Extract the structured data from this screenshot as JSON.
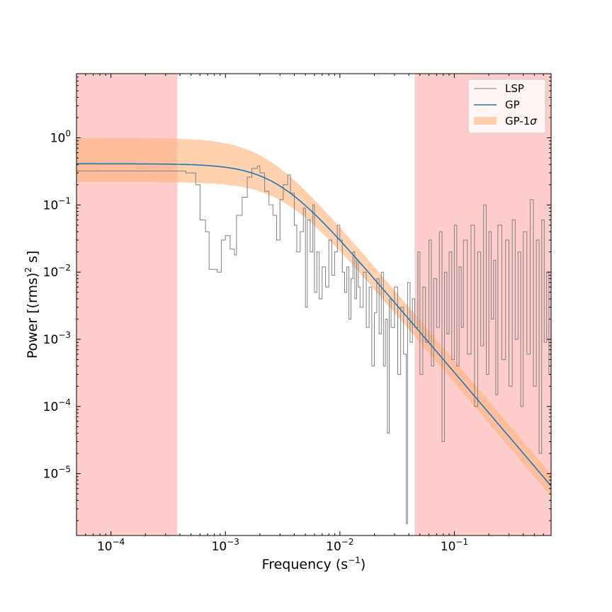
{
  "chart_data": {
    "type": "line",
    "title": "",
    "xlabel": "Frequency (s",
    "xlabel_sup": "−1",
    "xlabel_tail": ")",
    "ylabel": "Power [(rms)",
    "ylabel_sup": "2",
    "ylabel_tail": " s]",
    "xscale": "log",
    "yscale": "log",
    "xlim": [
      5e-05,
      0.7
    ],
    "ylim": [
      1.2e-06,
      9.0
    ],
    "grid": false,
    "legend_position": "top-right",
    "x_ticks": [
      {
        "value": 0.0001,
        "base": "10",
        "exp": "−4"
      },
      {
        "value": 0.001,
        "base": "10",
        "exp": "−3"
      },
      {
        "value": 0.01,
        "base": "10",
        "exp": "−2"
      },
      {
        "value": 0.1,
        "base": "10",
        "exp": "−1"
      }
    ],
    "y_ticks": [
      {
        "value": 1,
        "base": "10",
        "exp": "0"
      },
      {
        "value": 0.1,
        "base": "10",
        "exp": "−1"
      },
      {
        "value": 0.01,
        "base": "10",
        "exp": "−2"
      },
      {
        "value": 0.001,
        "base": "10",
        "exp": "−3"
      },
      {
        "value": 0.0001,
        "base": "10",
        "exp": "−4"
      },
      {
        "value": 1e-05,
        "base": "10",
        "exp": "−5"
      }
    ],
    "shaded_regions": [
      {
        "x_start": 5e-05,
        "x_end": 0.00038,
        "color": "#ff9999"
      },
      {
        "x_start": 0.045,
        "x_end": 0.7,
        "color": "#ff9999"
      }
    ],
    "gp_model": {
      "name": "GP",
      "color": "#1f77b4",
      "form": "lorentzian",
      "amplitude": 0.41,
      "break_frequency": 0.0028,
      "sigma_band": {
        "name": "GP-1σ",
        "color": "#ffb27a",
        "amplitude_low": 0.22,
        "amplitude_high": 1.0,
        "break_low": 0.0032,
        "break_high": 0.0022
      }
    },
    "series": [
      {
        "name": "LSP",
        "color": "#808080",
        "style": "steps",
        "points": [
          [
            5e-05,
            0.32
          ],
          [
            0.0003,
            0.32
          ],
          [
            0.00045,
            0.3
          ],
          [
            0.00055,
            0.2
          ],
          [
            0.0006,
            0.06
          ],
          [
            0.00067,
            0.04
          ],
          [
            0.00072,
            0.011
          ],
          [
            0.00085,
            0.01
          ],
          [
            0.00092,
            0.03
          ],
          [
            0.001,
            0.035
          ],
          [
            0.0011,
            0.022
          ],
          [
            0.0012,
            0.018
          ],
          [
            0.00125,
            0.07
          ],
          [
            0.0014,
            0.13
          ],
          [
            0.00155,
            0.26
          ],
          [
            0.0017,
            0.35
          ],
          [
            0.0019,
            0.38
          ],
          [
            0.002,
            0.3
          ],
          [
            0.0022,
            0.16
          ],
          [
            0.0024,
            0.1
          ],
          [
            0.0026,
            0.07
          ],
          [
            0.0028,
            0.03
          ],
          [
            0.003,
            0.12
          ],
          [
            0.0032,
            0.2
          ],
          [
            0.0035,
            0.28
          ],
          [
            0.0037,
            0.15
          ],
          [
            0.004,
            0.05
          ],
          [
            0.0042,
            0.02
          ],
          [
            0.0045,
            0.04
          ],
          [
            0.0048,
            0.09
          ],
          [
            0.005,
            0.003
          ],
          [
            0.0052,
            0.06
          ],
          [
            0.0055,
            0.02
          ],
          [
            0.0058,
            0.1
          ],
          [
            0.006,
            0.005
          ],
          [
            0.0063,
            0.02
          ],
          [
            0.0066,
            0.004
          ],
          [
            0.007,
            0.012
          ],
          [
            0.0075,
            0.006
          ],
          [
            0.008,
            0.03
          ],
          [
            0.0085,
            0.009
          ],
          [
            0.009,
            0.02
          ],
          [
            0.0095,
            0.05
          ],
          [
            0.01,
            0.03
          ],
          [
            0.0105,
            0.01
          ],
          [
            0.011,
            0.005
          ],
          [
            0.0115,
            0.012
          ],
          [
            0.012,
            0.002
          ],
          [
            0.0125,
            0.008
          ],
          [
            0.013,
            0.02
          ],
          [
            0.0135,
            0.004
          ],
          [
            0.014,
            0.015
          ],
          [
            0.0145,
            0.006
          ],
          [
            0.015,
            0.003
          ],
          [
            0.016,
            0.01
          ],
          [
            0.017,
            0.0015
          ],
          [
            0.018,
            0.006
          ],
          [
            0.019,
            0.0004
          ],
          [
            0.02,
            0.0025
          ],
          [
            0.021,
            0.008
          ],
          [
            0.022,
            0.0012
          ],
          [
            0.023,
            0.01
          ],
          [
            0.024,
            0.0004
          ],
          [
            0.025,
            0.002
          ],
          [
            0.026,
            4e-05
          ],
          [
            0.027,
            0.004
          ],
          [
            0.028,
            0.0015
          ],
          [
            0.03,
            0.006
          ],
          [
            0.032,
            0.0003
          ],
          [
            0.034,
            0.003
          ],
          [
            0.036,
            0.0006
          ],
          [
            0.038,
            1.8e-06
          ],
          [
            0.039,
            0.007
          ],
          [
            0.041,
            0.0009
          ],
          [
            0.043,
            0.004
          ],
          [
            0.045,
            0.0015
          ],
          [
            0.048,
            0.02
          ],
          [
            0.05,
            0.0003
          ],
          [
            0.053,
            0.006
          ],
          [
            0.056,
            0.0009
          ],
          [
            0.06,
            0.03
          ],
          [
            0.063,
            0.0004
          ],
          [
            0.066,
            0.008
          ],
          [
            0.07,
            0.0015
          ],
          [
            0.074,
            0.04
          ],
          [
            0.078,
            3e-05
          ],
          [
            0.082,
            0.01
          ],
          [
            0.086,
            0.0012
          ],
          [
            0.09,
            0.02
          ],
          [
            0.095,
            0.0005
          ],
          [
            0.1,
            0.05
          ],
          [
            0.105,
            0.0004
          ],
          [
            0.11,
            0.012
          ],
          [
            0.115,
            0.0015
          ],
          [
            0.12,
            0.03
          ],
          [
            0.13,
            0.0006
          ],
          [
            0.14,
            0.05
          ],
          [
            0.15,
            0.0001
          ],
          [
            0.16,
            0.02
          ],
          [
            0.17,
            0.0008
          ],
          [
            0.18,
            0.1
          ],
          [
            0.19,
            0.0003
          ],
          [
            0.2,
            0.04
          ],
          [
            0.21,
            0.002
          ],
          [
            0.22,
            0.015
          ],
          [
            0.23,
            0.00015
          ],
          [
            0.24,
            0.05
          ],
          [
            0.26,
            0.0005
          ],
          [
            0.28,
            0.03
          ],
          [
            0.3,
            0.0002
          ],
          [
            0.32,
            0.06
          ],
          [
            0.34,
            0.001
          ],
          [
            0.36,
            0.02
          ],
          [
            0.38,
            0.0001
          ],
          [
            0.4,
            0.04
          ],
          [
            0.43,
            0.0006
          ],
          [
            0.46,
            0.12
          ],
          [
            0.49,
            0.0002
          ],
          [
            0.52,
            0.03
          ],
          [
            0.55,
            2e-05
          ],
          [
            0.58,
            0.06
          ],
          [
            0.61,
            0.0009
          ],
          [
            0.64,
            0.01
          ],
          [
            0.67,
            0.0003
          ],
          [
            0.7,
            0.08
          ]
        ]
      }
    ],
    "legend": [
      {
        "label": "LSP",
        "kind": "line",
        "color": "#808080"
      },
      {
        "label": "GP",
        "kind": "line",
        "color": "#1f77b4"
      },
      {
        "label": "GP-1",
        "label_sym": "σ",
        "kind": "patch",
        "color": "#ffb27a"
      }
    ]
  }
}
